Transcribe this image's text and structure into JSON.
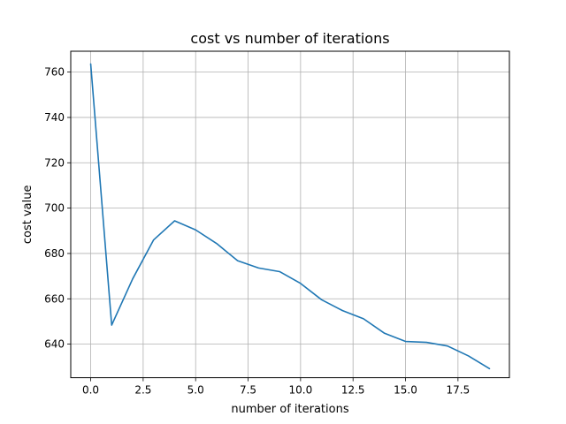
{
  "chart_data": {
    "type": "line",
    "title": "cost vs number of iterations",
    "xlabel": "number of iterations",
    "ylabel": "cost value",
    "xlim": [
      -0.95,
      19.95
    ],
    "ylim": [
      625.2,
      769.2
    ],
    "grid": true,
    "x_ticks": [
      0.0,
      2.5,
      5.0,
      7.5,
      10.0,
      12.5,
      15.0,
      17.5
    ],
    "x_tick_labels": [
      "0.0",
      "2.5",
      "5.0",
      "7.5",
      "10.0",
      "12.5",
      "15.0",
      "17.5"
    ],
    "y_ticks": [
      640,
      660,
      680,
      700,
      720,
      740,
      760
    ],
    "y_tick_labels": [
      "640",
      "660",
      "680",
      "700",
      "720",
      "740",
      "760"
    ],
    "series": [
      {
        "color": "#1f77b4",
        "x": [
          0,
          1,
          2,
          3,
          4,
          5,
          6,
          7,
          8,
          9,
          10,
          11,
          12,
          13,
          14,
          15,
          16,
          17,
          18,
          19
        ],
        "y": [
          763.6,
          648.4,
          668.8,
          686.0,
          694.4,
          690.4,
          684.4,
          676.8,
          673.6,
          672.0,
          666.8,
          659.6,
          654.8,
          651.2,
          644.8,
          641.2,
          640.8,
          639.2,
          634.8,
          629.2
        ]
      }
    ]
  }
}
